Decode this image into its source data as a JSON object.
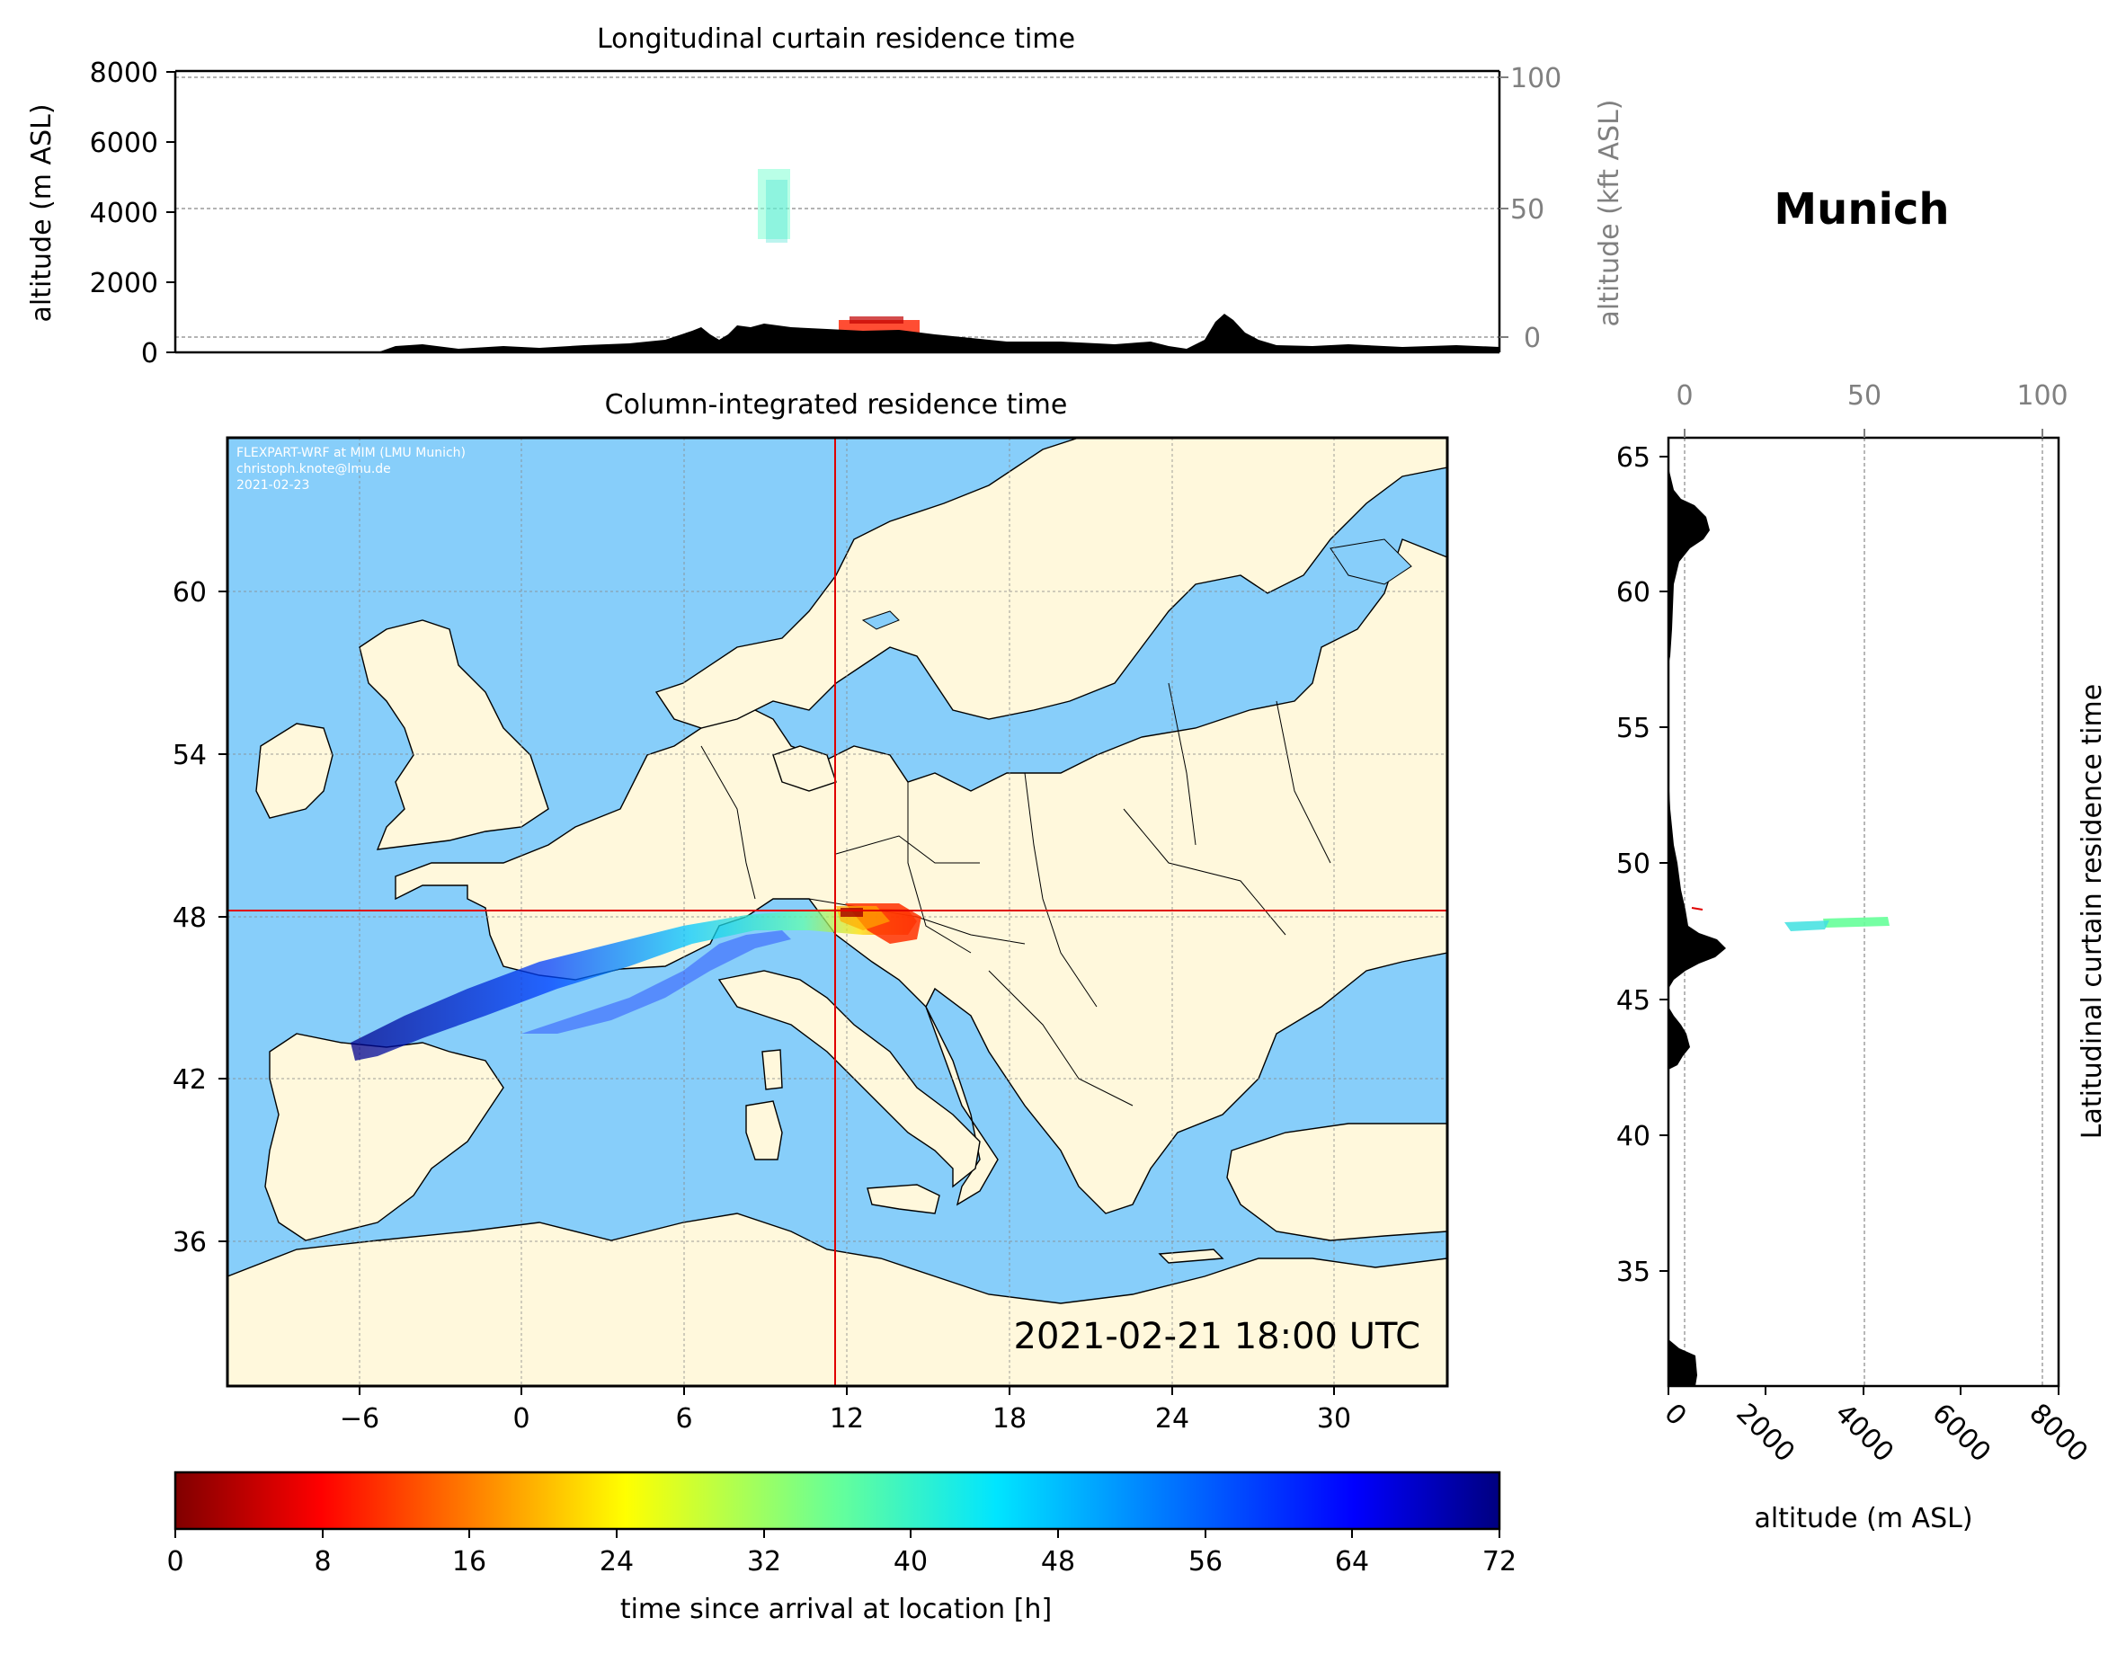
{
  "location_title": "Munich",
  "top_panel": {
    "title": "Longitudinal curtain residence time",
    "ylabel_left": "altitude (m ASL)",
    "ylabel_right": "altitude (kft ASL)",
    "left_ticks": [
      "0",
      "2000",
      "4000",
      "6000",
      "8000"
    ],
    "right_ticks": [
      "0",
      "50",
      "100"
    ]
  },
  "map_panel": {
    "title": "Column-integrated residence time",
    "credit_lines": [
      "FLEXPART-WRF at MIM (LMU Munich)",
      "christoph.knote@lmu.de",
      "2021-02-23"
    ],
    "timestamp": "2021-02-21 18:00 UTC",
    "lon_ticks": [
      "−6",
      "0",
      "6",
      "12",
      "18",
      "24",
      "30"
    ],
    "lat_ticks": [
      "36",
      "42",
      "48",
      "54",
      "60"
    ],
    "land_color": "#fff8dc",
    "sea_color": "#87cefa",
    "crosshair_color": "#e00000",
    "crosshair_lon": 11.6,
    "crosshair_lat": 48.1
  },
  "side_panel": {
    "ylabel_right": "Latitudinal curtain residence time",
    "xlabel": "altitude (m ASL)",
    "lat_ticks": [
      "35",
      "40",
      "45",
      "50",
      "55",
      "60",
      "65"
    ],
    "bottom_ticks": [
      "0",
      "2000",
      "4000",
      "6000",
      "8000"
    ],
    "top_ticks": [
      "0",
      "50",
      "100"
    ]
  },
  "colorbar": {
    "label": "time since arrival at location [h]",
    "ticks": [
      "0",
      "8",
      "16",
      "24",
      "32",
      "40",
      "48",
      "56",
      "64",
      "72"
    ],
    "colormap": "jet_r",
    "range": [
      0,
      72
    ]
  }
}
